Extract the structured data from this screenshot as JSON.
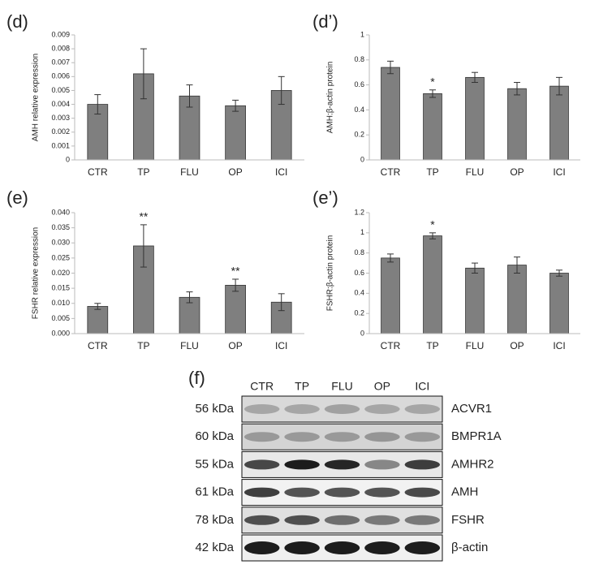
{
  "chart_data": [
    {
      "type": "bar",
      "panel": "(d)",
      "ylabel": "AMH relative expression",
      "categories": [
        "CTR",
        "TP",
        "FLU",
        "OP",
        "ICI"
      ],
      "values": [
        0.004,
        0.0062,
        0.0046,
        0.0039,
        0.005
      ],
      "errors": [
        0.0007,
        0.0018,
        0.0008,
        0.0004,
        0.001
      ],
      "color": "#7f7f7f",
      "ylim": [
        0,
        0.009
      ],
      "yticks": [
        0,
        0.001,
        0.002,
        0.003,
        0.004,
        0.005,
        0.006,
        0.007,
        0.008,
        0.009
      ]
    },
    {
      "type": "bar",
      "panel": "(d’)",
      "ylabel": "AMH:β-actin protein",
      "categories": [
        "CTR",
        "TP",
        "FLU",
        "OP",
        "ICI"
      ],
      "values": [
        0.74,
        0.53,
        0.66,
        0.57,
        0.59
      ],
      "errors": [
        0.05,
        0.03,
        0.04,
        0.05,
        0.07
      ],
      "annotations": [
        null,
        "*",
        null,
        null,
        null
      ],
      "color": "#7f7f7f",
      "ylim": [
        0,
        1
      ],
      "yticks": [
        0,
        0.2,
        0.4,
        0.6,
        0.8,
        1
      ]
    },
    {
      "type": "bar",
      "panel": "(e)",
      "ylabel": "FSHR relative expression",
      "categories": [
        "CTR",
        "TP",
        "FLU",
        "OP",
        "ICI"
      ],
      "values": [
        0.009,
        0.029,
        0.012,
        0.016,
        0.0104
      ],
      "errors": [
        0.001,
        0.007,
        0.0018,
        0.002,
        0.0028
      ],
      "annotations": [
        null,
        "**",
        null,
        "**",
        null
      ],
      "color": "#7f7f7f",
      "ylim": [
        0,
        0.04
      ],
      "yticks": [
        {
          "value": 0,
          "label": "0.000"
        },
        {
          "value": 0.005,
          "label": "0.005"
        },
        {
          "value": 0.01,
          "label": "0.010"
        },
        {
          "value": 0.015,
          "label": "0.015"
        },
        {
          "value": 0.02,
          "label": "0.020"
        },
        {
          "value": 0.025,
          "label": "0.025"
        },
        {
          "value": 0.03,
          "label": "0.030"
        },
        {
          "value": 0.035,
          "label": "0.035"
        },
        {
          "value": 0.04,
          "label": "0.040"
        }
      ]
    },
    {
      "type": "bar",
      "panel": "(e’)",
      "ylabel": "FSHR:β-actin protein",
      "categories": [
        "CTR",
        "TP",
        "FLU",
        "OP",
        "ICI"
      ],
      "values": [
        0.75,
        0.97,
        0.65,
        0.68,
        0.6
      ],
      "errors": [
        0.04,
        0.03,
        0.05,
        0.08,
        0.03
      ],
      "annotations": [
        null,
        "*",
        null,
        null,
        null
      ],
      "color": "#7f7f7f",
      "ylim": [
        0,
        1.2
      ],
      "yticks": [
        0,
        0.2,
        0.4,
        0.6,
        0.8,
        1,
        1.2
      ]
    }
  ],
  "blot": {
    "panel": "(f)",
    "lanes": [
      "CTR",
      "TP",
      "FLU",
      "OP",
      "ICI"
    ],
    "rows": [
      {
        "kda": "56 kDa",
        "protein": "ACVR1"
      },
      {
        "kda": "60 kDa",
        "protein": "BMPR1A"
      },
      {
        "kda": "55 kDa",
        "protein": "AMHR2"
      },
      {
        "kda": "61 kDa",
        "protein": "AMH"
      },
      {
        "kda": "78 kDa",
        "protein": "FSHR"
      },
      {
        "kda": "42 kDa",
        "protein": "β-actin"
      }
    ]
  }
}
